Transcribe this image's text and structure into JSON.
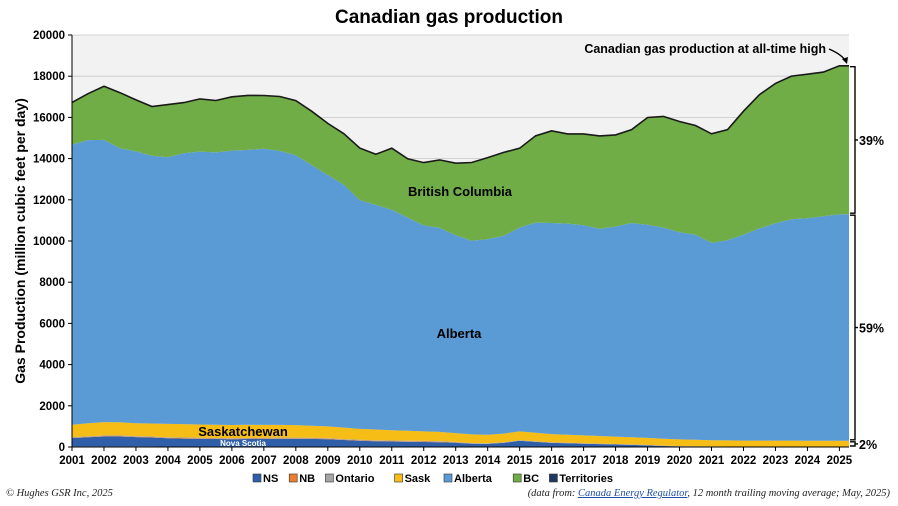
{
  "chart_data": {
    "type": "area",
    "title": "Canadian gas production",
    "ylabel": "Gas Production (million cubic feet per day)",
    "xlabel": "",
    "ylim": [
      0,
      20000
    ],
    "xlim": [
      2001,
      2025.3
    ],
    "y_ticks": [
      0,
      2000,
      4000,
      6000,
      8000,
      10000,
      12000,
      14000,
      16000,
      18000,
      20000
    ],
    "y_tick_labels": [
      "0",
      "2000",
      "4000",
      "6000",
      "8000",
      "10000",
      "12000",
      "14000",
      "16000",
      "18000",
      "20000"
    ],
    "x_ticks": [
      2001,
      2002,
      2003,
      2004,
      2005,
      2006,
      2007,
      2008,
      2009,
      2010,
      2011,
      2012,
      2013,
      2014,
      2015,
      2016,
      2017,
      2018,
      2019,
      2020,
      2021,
      2022,
      2023,
      2024,
      2025
    ],
    "x_tick_labels": [
      "2001",
      "2002",
      "2003",
      "2004",
      "2005",
      "2006",
      "2007",
      "2008",
      "2009",
      "2010",
      "2011",
      "2012",
      "2013",
      "2014",
      "2015",
      "2016",
      "2017",
      "2018",
      "2019",
      "2020",
      "2021",
      "2022",
      "2023",
      "2024",
      "2025"
    ],
    "grid": "horizontal",
    "plot_background": "#f2f2f2",
    "x": [
      2001,
      2001.5,
      2002,
      2002.5,
      2003,
      2003.5,
      2004,
      2004.5,
      2005,
      2005.5,
      2006,
      2006.5,
      2007,
      2007.5,
      2008,
      2008.5,
      2009,
      2009.5,
      2010,
      2010.5,
      2011,
      2011.5,
      2012,
      2012.5,
      2013,
      2013.5,
      2014,
      2014.5,
      2015,
      2015.5,
      2016,
      2016.5,
      2017,
      2017.5,
      2018,
      2018.5,
      2019,
      2019.5,
      2020,
      2020.5,
      2021,
      2021.5,
      2022,
      2022.5,
      2023,
      2023.5,
      2024,
      2024.5,
      2025,
      2025.3
    ],
    "series": [
      {
        "name": "NS",
        "color": "#2e5fa8",
        "values": [
          400,
          440,
          480,
          480,
          450,
          430,
          400,
          390,
          380,
          370,
          360,
          370,
          380,
          390,
          390,
          380,
          370,
          330,
          290,
          270,
          260,
          250,
          240,
          230,
          200,
          150,
          150,
          200,
          300,
          250,
          200,
          180,
          160,
          140,
          120,
          100,
          80,
          50,
          30,
          20,
          10,
          5,
          0,
          0,
          0,
          0,
          0,
          0,
          0,
          0
        ]
      },
      {
        "name": "NB",
        "color": "#ed7d31",
        "values": [
          20,
          20,
          20,
          20,
          20,
          20,
          20,
          20,
          20,
          20,
          20,
          20,
          20,
          20,
          20,
          20,
          20,
          20,
          20,
          20,
          20,
          20,
          20,
          20,
          15,
          10,
          5,
          5,
          5,
          5,
          5,
          5,
          5,
          5,
          5,
          5,
          5,
          5,
          5,
          5,
          5,
          5,
          5,
          5,
          5,
          5,
          5,
          5,
          5,
          5
        ]
      },
      {
        "name": "Ontario",
        "color": "#a5a5a5",
        "values": [
          30,
          30,
          30,
          30,
          30,
          30,
          30,
          30,
          30,
          30,
          30,
          30,
          30,
          30,
          30,
          30,
          30,
          30,
          30,
          30,
          30,
          30,
          30,
          30,
          25,
          25,
          25,
          25,
          20,
          20,
          20,
          20,
          20,
          20,
          20,
          20,
          15,
          15,
          15,
          15,
          15,
          15,
          15,
          15,
          15,
          15,
          15,
          15,
          15,
          15
        ]
      },
      {
        "name": "Sask",
        "color": "#f5bd16",
        "values": [
          600,
          630,
          650,
          640,
          620,
          630,
          650,
          650,
          640,
          640,
          640,
          640,
          630,
          620,
          610,
          590,
          570,
          550,
          530,
          520,
          500,
          480,
          460,
          450,
          430,
          420,
          410,
          420,
          430,
          420,
          400,
          390,
          380,
          370,
          360,
          350,
          340,
          330,
          320,
          310,
          300,
          295,
          290,
          290,
          290,
          290,
          285,
          285,
          280,
          280
        ]
      },
      {
        "name": "Alberta",
        "color": "#5b9bd5",
        "values": [
          13600,
          13750,
          13700,
          13300,
          13200,
          13000,
          12950,
          13150,
          13250,
          13220,
          13320,
          13340,
          13400,
          13300,
          13100,
          12650,
          12200,
          11800,
          11100,
          10900,
          10700,
          10350,
          10000,
          9900,
          9600,
          9400,
          9500,
          9600,
          9900,
          10200,
          10250,
          10250,
          10200,
          10050,
          10200,
          10400,
          10350,
          10250,
          10050,
          9950,
          9580,
          9720,
          10000,
          10300,
          10550,
          10750,
          10800,
          10900,
          11000,
          11000
        ]
      },
      {
        "name": "BC",
        "color": "#70ad47",
        "values": [
          2050,
          2250,
          2600,
          2700,
          2500,
          2390,
          2550,
          2460,
          2560,
          2520,
          2610,
          2650,
          2590,
          2640,
          2650,
          2610,
          2510,
          2470,
          2530,
          2460,
          2990,
          2855,
          3050,
          3300,
          3500,
          3800,
          3960,
          4050,
          3850,
          4210,
          4475,
          4355,
          4435,
          4515,
          4445,
          4535,
          5205,
          5400,
          5380,
          5305,
          5295,
          5365,
          5990,
          6495,
          6790,
          6945,
          6990,
          6995,
          7205,
          7205
        ]
      },
      {
        "name": "Territories",
        "color": "#1f3864",
        "values": [
          30,
          30,
          30,
          30,
          30,
          30,
          20,
          20,
          20,
          20,
          20,
          20,
          15,
          15,
          15,
          15,
          10,
          10,
          10,
          10,
          5,
          5,
          5,
          5,
          5,
          5,
          0,
          0,
          0,
          0,
          0,
          0,
          0,
          0,
          0,
          0,
          0,
          0,
          0,
          0,
          0,
          0,
          0,
          0,
          0,
          0,
          0,
          0,
          0,
          0
        ]
      }
    ],
    "area_labels": {
      "bc": "British Columbia",
      "alberta": "Alberta",
      "sask": "Saskatchewan",
      "ns": "Nova Scotia"
    },
    "annotation": "Canadian gas production at all-time high",
    "shares": [
      {
        "label": "39%",
        "from": 11300,
        "to": 18510
      },
      {
        "label": "59%",
        "from": 300,
        "to": 11300
      },
      {
        "label": "2%",
        "from": 0,
        "to": 300
      }
    ],
    "legend_position": "bottom"
  },
  "legend": [
    {
      "label": "NS",
      "color": "#2e5fa8"
    },
    {
      "label": "NB",
      "color": "#ed7d31"
    },
    {
      "label": "Ontario",
      "color": "#a5a5a5"
    },
    {
      "label": "Sask",
      "color": "#f5bd16"
    },
    {
      "label": "Alberta",
      "color": "#5b9bd5"
    },
    {
      "label": "BC",
      "color": "#70ad47"
    },
    {
      "label": "Territories",
      "color": "#1f3864"
    }
  ],
  "footer": {
    "copyright": "© Hughes GSR Inc, 2025",
    "source_prefix": "(data from: ",
    "source_link": "Canada Energy Regulator",
    "source_suffix": ", 12 month trailing moving average; May, 2025)"
  }
}
